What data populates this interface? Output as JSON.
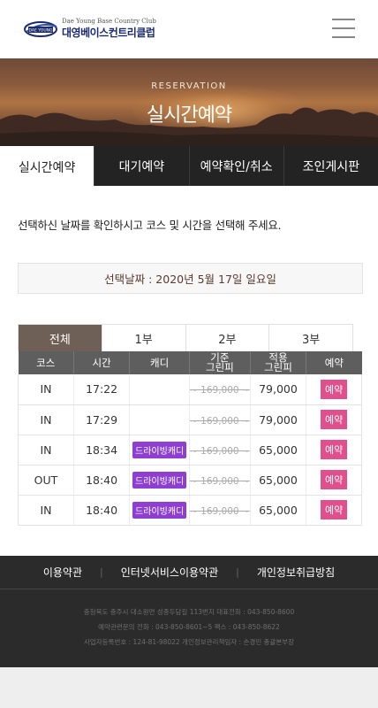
{
  "header": {
    "logo_small": "Dae Young Base Country Club",
    "logo_badge": "DAE YOUNG",
    "logo_name": "대영베이스컨트리클럽"
  },
  "banner": {
    "subtitle": "RESERVATION",
    "title": "실시간예약"
  },
  "tabs": [
    {
      "label": "실시간예약",
      "active": true
    },
    {
      "label": "대기예약",
      "active": false
    },
    {
      "label": "예약확인/취소",
      "active": false
    },
    {
      "label": "조인게시판",
      "active": false
    }
  ],
  "description": "선택하신 날짜를 확인하시고 코스 및 시간을 선택해 주세요.",
  "selected_date": "선택날짜 : 2020년 5월 17일 일요일",
  "filter_tabs": [
    {
      "label": "전체",
      "active": true
    },
    {
      "label": "1부",
      "active": false
    },
    {
      "label": "2부",
      "active": false
    },
    {
      "label": "3부",
      "active": false
    }
  ],
  "table": {
    "headers": {
      "course": "코스",
      "time": "시간",
      "caddie": "캐디",
      "standard_line1": "기준",
      "standard_line2": "그린피",
      "applied_line1": "적용",
      "applied_line2": "그린피",
      "reserve": "예약"
    },
    "rows": [
      {
        "course": "IN",
        "time": "17:22",
        "caddie": "",
        "standard": "~ 169,000 ~",
        "applied": "79,000",
        "action": "예약"
      },
      {
        "course": "IN",
        "time": "17:29",
        "caddie": "",
        "standard": "~ 169,000 ~",
        "applied": "79,000",
        "action": "예약"
      },
      {
        "course": "IN",
        "time": "18:34",
        "caddie": "드라이빙캐디",
        "standard": "~ 169,000 ~",
        "applied": "65,000",
        "action": "예약"
      },
      {
        "course": "OUT",
        "time": "18:40",
        "caddie": "드라이빙캐디",
        "standard": "~ 169,000 ~",
        "applied": "65,000",
        "action": "예약"
      },
      {
        "course": "IN",
        "time": "18:40",
        "caddie": "드라이빙캐디",
        "standard": "~ 169,000 ~",
        "applied": "65,000",
        "action": "예약"
      }
    ]
  },
  "footer": {
    "links": [
      "이용약관",
      "인터넷서비스이용약관",
      "개인정보취급방침"
    ],
    "separator": "|",
    "info": [
      "충청북도 충주시 대소원면 성종두담길 113번지 대표전화 : 043-850-8600",
      "예약관련문의 전화 : 043-850-8601~5 팩스 : 043-850-8622",
      "사업자등록번호 : 124-81-98022 개인정보관리책임자 : 손경민 총괄본부장"
    ]
  },
  "colors": {
    "tab_bar": "#232323",
    "filter_active": "#6f6057",
    "caddie_badge": "#8e3fd1",
    "reserve_button": "#e0508c",
    "footer_bg": "#2b2b2b",
    "logo_text": "#1b2a6b"
  }
}
